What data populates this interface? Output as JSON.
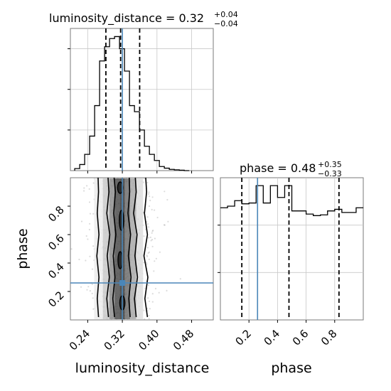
{
  "chart_data": {
    "type": "corner",
    "parameters": [
      "luminosity_distance",
      "phase"
    ],
    "truth": {
      "luminosity_distance": 0.32,
      "phase": 0.26
    },
    "grid": true,
    "luminosity_distance_marginal": {
      "type": "histogram",
      "title": {
        "name": "luminosity_distance",
        "median": "0.32",
        "plus": "+0.04",
        "minus": "−0.04"
      },
      "xlim": [
        0.2,
        0.53
      ],
      "bin_edges": [
        0.21,
        0.2215,
        0.233,
        0.2445,
        0.256,
        0.2675,
        0.279,
        0.2905,
        0.302,
        0.3135,
        0.325,
        0.3365,
        0.348,
        0.3595,
        0.371,
        0.3825,
        0.394,
        0.4055,
        0.417,
        0.4285,
        0.44,
        0.4515,
        0.463,
        0.4745
      ],
      "counts": [
        0.5,
        1.5,
        4.0,
        8.5,
        16.0,
        27.0,
        30.5,
        32.5,
        33.0,
        30.0,
        24.5,
        16.0,
        14.5,
        10.0,
        6.0,
        4.0,
        2.5,
        1.0,
        0.6,
        0.3,
        0.2,
        0.1,
        0.0
      ],
      "ylim": [
        0,
        35
      ],
      "quantiles": [
        0.282,
        0.316,
        0.36
      ],
      "ticks_y": [
        10,
        20,
        30
      ]
    },
    "phase_marginal": {
      "type": "histogram",
      "title": {
        "name": "phase",
        "median": "0.48",
        "plus": "+0.35",
        "minus": "−0.33"
      },
      "xlim": [
        0.0,
        1.0
      ],
      "bin_edges": [
        0.0,
        0.05,
        0.1,
        0.15,
        0.2,
        0.25,
        0.3,
        0.35,
        0.4,
        0.45,
        0.5,
        0.55,
        0.6,
        0.65,
        0.7,
        0.75,
        0.8,
        0.85,
        0.9,
        0.95,
        1.0
      ],
      "counts": [
        14.2,
        14.4,
        15.1,
        14.7,
        14.8,
        17.0,
        14.8,
        17.0,
        15.5,
        17.0,
        13.8,
        13.8,
        13.4,
        13.2,
        13.3,
        13.8,
        14.0,
        13.6,
        13.6,
        14.2
      ],
      "ylim": [
        0,
        18
      ],
      "quantiles": [
        0.15,
        0.48,
        0.83
      ],
      "ticks_y": [
        6,
        12
      ],
      "xticks": [
        0.2,
        0.4,
        0.6,
        0.8
      ],
      "xticklabels": [
        "0.2",
        "0.4",
        "0.6",
        "0.8"
      ],
      "xlabel": "phase"
    },
    "joint": {
      "type": "2d-density-contour",
      "xlim": [
        0.2,
        0.53
      ],
      "ylim": [
        0.0,
        1.0
      ],
      "xticks": [
        0.24,
        0.32,
        0.4,
        0.48
      ],
      "xticklabels": [
        "0.24",
        "0.32",
        "0.40",
        "0.48"
      ],
      "yticks": [
        0.2,
        0.4,
        0.6,
        0.8
      ],
      "yticklabels": [
        "0.2",
        "0.4",
        "0.6",
        "0.8"
      ],
      "xlabel": "luminosity_distance",
      "ylabel": "phase",
      "density_columns": [
        {
          "x0": 0.255,
          "x1": 0.275,
          "gray": "#ececec"
        },
        {
          "x0": 0.275,
          "x1": 0.29,
          "gray": "#c9c9c9"
        },
        {
          "x0": 0.29,
          "x1": 0.302,
          "gray": "#8e8e8e"
        },
        {
          "x0": 0.302,
          "x1": 0.314,
          "gray": "#4e4e4e"
        },
        {
          "x0": 0.314,
          "x1": 0.326,
          "gray": "#3a3a3a"
        },
        {
          "x0": 0.326,
          "x1": 0.338,
          "gray": "#6e6e6e"
        },
        {
          "x0": 0.338,
          "x1": 0.352,
          "gray": "#a8a8a8"
        },
        {
          "x0": 0.352,
          "x1": 0.368,
          "gray": "#dedede"
        }
      ],
      "contours": [
        {
          "y": [
            0.02,
            0.15,
            0.3,
            0.45,
            0.6,
            0.75,
            0.9,
            1.0
          ],
          "left": [
            0.265,
            0.262,
            0.266,
            0.261,
            0.266,
            0.262,
            0.265,
            0.264
          ],
          "right": [
            0.378,
            0.372,
            0.379,
            0.37,
            0.378,
            0.371,
            0.376,
            0.374
          ]
        },
        {
          "y": [
            0.02,
            0.15,
            0.3,
            0.45,
            0.6,
            0.75,
            0.9,
            1.0
          ],
          "left": [
            0.288,
            0.284,
            0.29,
            0.285,
            0.291,
            0.284,
            0.289,
            0.287
          ],
          "right": [
            0.352,
            0.348,
            0.355,
            0.349,
            0.354,
            0.346,
            0.352,
            0.35
          ]
        },
        {
          "y": [
            0.02,
            0.15,
            0.3,
            0.45,
            0.6,
            0.75,
            0.9,
            1.0
          ],
          "left": [
            0.302,
            0.298,
            0.303,
            0.299,
            0.305,
            0.3,
            0.304,
            0.301
          ],
          "right": [
            0.338,
            0.335,
            0.34,
            0.334,
            0.339,
            0.333,
            0.337,
            0.336
          ]
        }
      ],
      "inner_islands": [
        {
          "cx": 0.315,
          "cy": 0.93,
          "rx": 0.006,
          "ry": 0.04
        },
        {
          "cx": 0.318,
          "cy": 0.7,
          "rx": 0.005,
          "ry": 0.07
        },
        {
          "cx": 0.315,
          "cy": 0.42,
          "rx": 0.005,
          "ry": 0.06
        },
        {
          "cx": 0.32,
          "cy": 0.12,
          "rx": 0.006,
          "ry": 0.05
        }
      ]
    },
    "colors": {
      "truth": "#4a86b8",
      "hist": "#000000",
      "grid": "#c8c8c8",
      "quantile": "#000000",
      "point": "#9a9a9a"
    }
  }
}
